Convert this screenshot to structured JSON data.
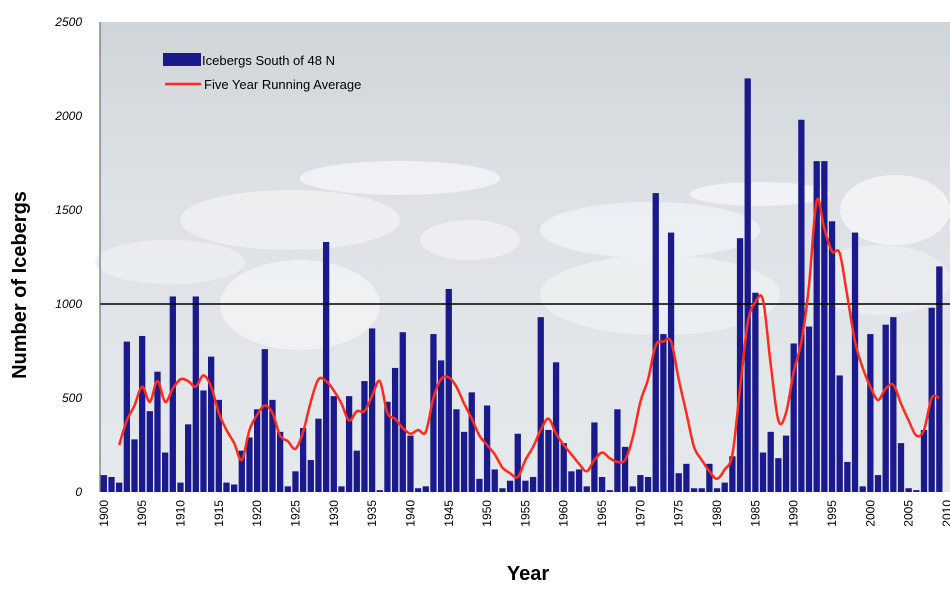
{
  "chart_data": {
    "type": "bar",
    "xlabel": "Year",
    "ylabel": "Number of Icebergs",
    "xlim": [
      1900,
      2010
    ],
    "ylim": [
      0,
      2500
    ],
    "yticks": [
      0,
      500,
      1000,
      1500,
      2000,
      2500
    ],
    "xticks": [
      1900,
      1905,
      1910,
      1915,
      1920,
      1925,
      1930,
      1935,
      1940,
      1945,
      1950,
      1955,
      1960,
      1965,
      1970,
      1975,
      1980,
      1985,
      1990,
      1995,
      2000,
      2005,
      2010
    ],
    "reference_line": 1000,
    "grid": false,
    "legend_position": "top-left",
    "colors": {
      "bars": "#1a1a8c",
      "average": "#ff2a1a",
      "background_tint": "#d8dde2"
    },
    "series": [
      {
        "name": "Icebergs South of 48 N",
        "type": "bar",
        "x": [
          1900,
          1901,
          1902,
          1903,
          1904,
          1905,
          1906,
          1907,
          1908,
          1909,
          1910,
          1911,
          1912,
          1913,
          1914,
          1915,
          1916,
          1917,
          1918,
          1919,
          1920,
          1921,
          1922,
          1923,
          1924,
          1925,
          1926,
          1927,
          1928,
          1929,
          1930,
          1931,
          1932,
          1933,
          1934,
          1935,
          1936,
          1937,
          1938,
          1939,
          1940,
          1941,
          1942,
          1943,
          1944,
          1945,
          1946,
          1947,
          1948,
          1949,
          1950,
          1951,
          1952,
          1953,
          1954,
          1955,
          1956,
          1957,
          1958,
          1959,
          1960,
          1961,
          1962,
          1963,
          1964,
          1965,
          1966,
          1967,
          1968,
          1969,
          1970,
          1971,
          1972,
          1973,
          1974,
          1975,
          1976,
          1977,
          1978,
          1979,
          1980,
          1981,
          1982,
          1983,
          1984,
          1985,
          1986,
          1987,
          1988,
          1989,
          1990,
          1991,
          1992,
          1993,
          1994,
          1995,
          1996,
          1997,
          1998,
          1999,
          2000,
          2001,
          2002,
          2003,
          2004,
          2005,
          2006,
          2007,
          2008,
          2009
        ],
        "values": [
          90,
          80,
          50,
          800,
          280,
          830,
          430,
          640,
          210,
          1040,
          50,
          360,
          1040,
          540,
          720,
          490,
          50,
          40,
          220,
          290,
          440,
          760,
          490,
          320,
          30,
          110,
          340,
          170,
          390,
          1330,
          510,
          30,
          510,
          220,
          590,
          870,
          10,
          480,
          660,
          850,
          300,
          20,
          30,
          840,
          700,
          1080,
          440,
          320,
          530,
          70,
          460,
          120,
          20,
          60,
          310,
          60,
          80,
          930,
          330,
          690,
          260,
          110,
          120,
          30,
          370,
          80,
          10,
          440,
          240,
          30,
          90,
          80,
          1590,
          840,
          1380,
          100,
          150,
          20,
          20,
          150,
          20,
          50,
          190,
          1350,
          2200,
          1060,
          210,
          320,
          180,
          300,
          790,
          1980,
          880,
          1760,
          1760,
          1440,
          620,
          160,
          1380,
          30,
          840,
          90,
          890,
          930,
          260,
          20,
          10,
          330,
          980,
          1200
        ]
      },
      {
        "name": "Five Year Running Average",
        "type": "line",
        "x": [
          1902,
          1903,
          1904,
          1905,
          1906,
          1907,
          1908,
          1909,
          1910,
          1911,
          1912,
          1913,
          1914,
          1915,
          1916,
          1917,
          1918,
          1919,
          1920,
          1921,
          1922,
          1923,
          1924,
          1925,
          1926,
          1927,
          1928,
          1929,
          1930,
          1931,
          1932,
          1933,
          1934,
          1935,
          1936,
          1937,
          1938,
          1939,
          1940,
          1941,
          1942,
          1943,
          1944,
          1945,
          1946,
          1947,
          1948,
          1949,
          1950,
          1951,
          1952,
          1953,
          1954,
          1955,
          1956,
          1957,
          1958,
          1959,
          1960,
          1961,
          1962,
          1963,
          1964,
          1965,
          1966,
          1967,
          1968,
          1969,
          1970,
          1971,
          1972,
          1973,
          1974,
          1975,
          1976,
          1977,
          1978,
          1979,
          1980,
          1981,
          1982,
          1983,
          1984,
          1985,
          1986,
          1987,
          1988,
          1989,
          1990,
          1991,
          1992,
          1993,
          1994,
          1995,
          1996,
          1997,
          1998,
          1999,
          2000,
          2001,
          2002,
          2003,
          2004,
          2005,
          2006,
          2007,
          2008,
          2009
        ],
        "values": [
          250,
          380,
          460,
          560,
          480,
          590,
          480,
          550,
          600,
          590,
          560,
          620,
          560,
          420,
          330,
          260,
          170,
          330,
          410,
          460,
          420,
          300,
          270,
          230,
          320,
          480,
          600,
          590,
          540,
          470,
          380,
          430,
          430,
          510,
          590,
          420,
          390,
          340,
          310,
          330,
          320,
          500,
          600,
          610,
          560,
          470,
          390,
          300,
          250,
          200,
          130,
          100,
          80,
          170,
          240,
          330,
          390,
          310,
          250,
          200,
          150,
          110,
          170,
          210,
          180,
          160,
          170,
          290,
          480,
          600,
          780,
          800,
          800,
          600,
          420,
          240,
          170,
          110,
          70,
          120,
          200,
          550,
          900,
          1010,
          1020,
          680,
          380,
          420,
          640,
          800,
          1100,
          1550,
          1400,
          1280,
          1270,
          1040,
          800,
          660,
          560,
          490,
          550,
          570,
          470,
          380,
          300,
          330,
          500,
          500
        ]
      }
    ]
  }
}
